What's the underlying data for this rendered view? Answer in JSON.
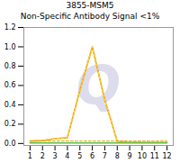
{
  "chart_data": {
    "type": "line",
    "title": "3855-MSM5",
    "subtitle": "Non-Specific Antibody Signal <1%",
    "x": [
      1,
      2,
      3,
      4,
      5,
      6,
      7,
      8,
      9,
      10,
      11,
      12
    ],
    "xlim": [
      0.5,
      12.5
    ],
    "xticks": [
      1,
      2,
      3,
      4,
      5,
      6,
      7,
      8,
      9,
      10,
      11,
      12
    ],
    "ylim": [
      -0.02,
      1.2
    ],
    "yticks": [
      {
        "value": 0,
        "label": "0.0"
      },
      0.2,
      0.4,
      0.6,
      0.8,
      {
        "value": 1.0,
        "label": "1.0"
      },
      1.2
    ],
    "annotations": [
      {
        "text": "Q",
        "color": "#DCDCEC"
      }
    ],
    "series": [
      {
        "color": "#E8960A",
        "line_style": "solid",
        "values": [
          0.025,
          0.03,
          0.05,
          0.06,
          0.55,
          1.0,
          0.45,
          0.025,
          0.015,
          0.01,
          0.01,
          0.01
        ]
      },
      {
        "color": "#FFE033",
        "line_style": "dashed",
        "values": [
          0.025,
          0.03,
          0.05,
          0.06,
          0.55,
          1.0,
          0.45,
          0.025,
          0.015,
          0.01,
          0.01,
          0.01
        ]
      },
      {
        "color": "#5BBF45",
        "line_style": "solid",
        "values": [
          0.005,
          0.005,
          0.005,
          0.005,
          0.005,
          0.005,
          0.005,
          0.005,
          0.005,
          0.005,
          0.005,
          0.005
        ]
      },
      {
        "color": "#E8960A",
        "line_style": "dashed",
        "values": [
          0.025,
          0.025,
          0.025,
          0.025,
          0.025,
          0.025,
          0.025,
          0.025,
          0.025,
          0.025,
          0.025,
          0.025
        ]
      }
    ]
  }
}
